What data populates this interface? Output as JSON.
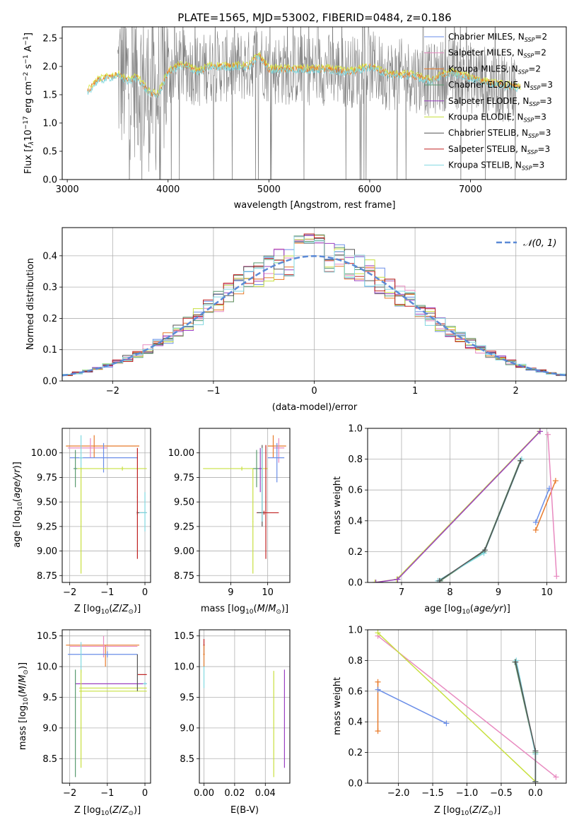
{
  "figure": {
    "title": "PLATE=1565, MJD=53002, FIBERID=0484, z=0.186"
  },
  "legend_entries": [
    {
      "base": "Chabrier MILES, N",
      "sub": "SSP",
      "tail": "=2",
      "color": "#6a8ee8"
    },
    {
      "base": "Salpeter MILES, N",
      "sub": "SSP",
      "tail": "=2",
      "color": "#e88ac0"
    },
    {
      "base": "Kroupa MILES, N",
      "sub": "SSP",
      "tail": "=2",
      "color": "#e87a2a"
    },
    {
      "base": "Chabrier ELODIE, N",
      "sub": "SSP",
      "tail": "=3",
      "color": "#5a9a70"
    },
    {
      "base": "Salpeter ELODIE, N",
      "sub": "SSP",
      "tail": "=3",
      "color": "#9a40c0"
    },
    {
      "base": "Kroupa ELODIE, N",
      "sub": "SSP",
      "tail": "=3",
      "color": "#c8e040"
    },
    {
      "base": "Chabrier STELIB, N",
      "sub": "SSP",
      "tail": "=3",
      "color": "#555555"
    },
    {
      "base": "Salpeter STELIB, N",
      "sub": "SSP",
      "tail": "=3",
      "color": "#c02020"
    },
    {
      "base": "Kroupa STELIB, N",
      "sub": "SSP",
      "tail": "=3",
      "color": "#80d8e0"
    }
  ],
  "colors": {
    "data_gray": "#808080",
    "model_cyan": "#80d8e0",
    "model_yellow": "#d8e840",
    "model_orange": "#e87a2a",
    "gaussian": "#5b8ad6",
    "grid": "#b0b0b0"
  },
  "chart_data": [
    {
      "id": "spectrum",
      "type": "line",
      "title": "PLATE=1565, MJD=53002, FIBERID=0484, z=0.186",
      "xlabel": "wavelength [Angstrom, rest frame]",
      "ylabel": "Flux [f_λ 10^-17 erg cm^-2 s^-1 A^-1]",
      "ylabel_parts": {
        "a": "Flux [",
        "b": "f",
        "b_sub": "λ",
        "c": "10",
        "c_sup": "−17",
        "d": " erg cm",
        "d_sup": "−2",
        "e": " s",
        "e_sup": "−1",
        "f": " A",
        "f_sup": "−1",
        "g": "]"
      },
      "xlim": [
        2950,
        7950
      ],
      "ylim": [
        0,
        2.7
      ],
      "xticks": [
        3000,
        4000,
        5000,
        6000,
        7000
      ],
      "yticks": [
        0.0,
        0.5,
        1.0,
        1.5,
        2.0,
        2.5
      ],
      "grid": false,
      "legend_position": "upper-right",
      "continuum_x": [
        3200,
        3300,
        3400,
        3500,
        3600,
        3700,
        3800,
        3900,
        4000,
        4100,
        4200,
        4300,
        4400,
        4600,
        4800,
        4900,
        5000,
        5200,
        5400,
        5600,
        5800,
        6000,
        6200,
        6400,
        6600,
        6800,
        7000,
        7200,
        7400,
        7500
      ],
      "continuum_y": [
        1.55,
        1.75,
        1.8,
        1.85,
        1.75,
        1.8,
        1.55,
        1.5,
        1.9,
        2.0,
        2.0,
        1.9,
        2.0,
        2.0,
        2.0,
        2.2,
        1.95,
        1.95,
        1.95,
        1.95,
        1.9,
        2.0,
        1.85,
        1.85,
        1.75,
        1.9,
        1.8,
        1.7,
        1.65,
        1.6
      ]
    },
    {
      "id": "residual-histogram",
      "type": "line",
      "xlabel": "(data-model)/error",
      "ylabel": "Normed distribution",
      "xlim": [
        -2.5,
        2.5
      ],
      "ylim": [
        0,
        0.49
      ],
      "xticks": [
        -2,
        -1,
        0,
        1,
        2
      ],
      "yticks": [
        0.0,
        0.1,
        0.2,
        0.3,
        0.4
      ],
      "grid": true,
      "legend": "𝒩(0, 1)",
      "legend_position": "upper-right",
      "bin_width": 0.1,
      "bin_start": -2.5,
      "gaussian": {
        "mu": 0,
        "sigma": 1
      }
    },
    {
      "id": "age-vs-metallicity",
      "type": "scatter",
      "xlabel": "Z [log10(Z/Z⊙)]",
      "ylabel": "age [log10(age/yr)]",
      "xlim": [
        -2.2,
        0.15
      ],
      "ylim": [
        8.68,
        10.25
      ],
      "xticks": [
        -2,
        -1,
        0
      ],
      "yticks": [
        8.75,
        9.0,
        9.25,
        9.5,
        9.75,
        10.0
      ],
      "grid": true
    },
    {
      "id": "age-vs-mass",
      "type": "scatter",
      "xlabel": "mass [log10(M/M⊙)]",
      "xlim": [
        8.15,
        10.6
      ],
      "ylim": [
        8.68,
        10.25
      ],
      "xticks": [
        9,
        10
      ],
      "yticks": [
        8.75,
        9.0,
        9.25,
        9.5,
        9.75,
        10.0
      ],
      "grid": true
    },
    {
      "id": "mass-weight-vs-age",
      "type": "line",
      "xlabel": "age [log10(age/yr)]",
      "ylabel": "mass weight",
      "xlim": [
        6.3,
        10.4
      ],
      "ylim": [
        0,
        1.0
      ],
      "xticks": [
        7,
        8,
        9,
        10
      ],
      "yticks": [
        0.0,
        0.2,
        0.4,
        0.6,
        0.8,
        1.0
      ],
      "grid": true,
      "series": [
        {
          "color": "#e87a2a",
          "x": [
            9.77,
            10.18
          ],
          "y": [
            0.34,
            0.66
          ]
        },
        {
          "color": "#6a8ee8",
          "x": [
            9.77,
            10.05
          ],
          "y": [
            0.39,
            0.61
          ]
        },
        {
          "color": "#e88ac0",
          "x": [
            10.2,
            10.02
          ],
          "y": [
            0.04,
            0.96
          ]
        },
        {
          "color": "#5a9a70",
          "x": [
            7.8,
            8.7,
            9.45
          ],
          "y": [
            0.01,
            0.2,
            0.79
          ]
        },
        {
          "color": "#80d8e0",
          "x": [
            7.75,
            8.7,
            9.48
          ],
          "y": [
            0.01,
            0.19,
            0.8
          ]
        },
        {
          "color": "#555555",
          "x": [
            7.78,
            8.72,
            9.46
          ],
          "y": [
            0.01,
            0.21,
            0.79
          ]
        },
        {
          "color": "#c8e040",
          "x": [
            6.45,
            6.9,
            9.85
          ],
          "y": [
            0.0,
            0.02,
            0.98
          ]
        },
        {
          "color": "#9a40c0",
          "x": [
            6.47,
            6.92,
            9.86
          ],
          "y": [
            0.0,
            0.02,
            0.98
          ]
        }
      ]
    },
    {
      "id": "mass-vs-metallicity",
      "type": "scatter",
      "xlabel": "Z [log10(Z/Z⊙)]",
      "ylabel": "mass [log10(M/M⊙)]",
      "xlim": [
        -2.2,
        0.15
      ],
      "ylim": [
        8.1,
        10.6
      ],
      "xticks": [
        -2,
        -1,
        0
      ],
      "yticks": [
        8.5,
        9.0,
        9.5,
        10.0,
        10.5
      ],
      "grid": true
    },
    {
      "id": "mass-vs-ebv",
      "type": "scatter",
      "xlabel": "E(B-V)",
      "xlim": [
        -0.003,
        0.056
      ],
      "ylim": [
        8.1,
        10.6
      ],
      "xticks": [
        0.0,
        0.02,
        0.04
      ],
      "yticks": [
        8.5,
        9.0,
        9.5,
        10.0,
        10.5
      ],
      "grid": true
    },
    {
      "id": "mass-weight-vs-metallicity",
      "type": "line",
      "xlabel": "Z [log10(Z/Z⊙)]",
      "ylabel": "mass weight",
      "xlim": [
        -2.45,
        0.45
      ],
      "ylim": [
        0,
        1.0
      ],
      "xticks": [
        -2.0,
        -1.5,
        -1.0,
        -0.5,
        0.0
      ],
      "yticks": [
        0.0,
        0.2,
        0.4,
        0.6,
        0.8,
        1.0
      ],
      "grid": true,
      "series": [
        {
          "color": "#e87a2a",
          "x": [
            -2.3,
            -2.3
          ],
          "y": [
            0.34,
            0.66
          ]
        },
        {
          "color": "#6a8ee8",
          "x": [
            -2.3,
            -1.3
          ],
          "y": [
            0.61,
            0.39
          ]
        },
        {
          "color": "#e88ac0",
          "x": [
            -2.3,
            0.3
          ],
          "y": [
            0.96,
            0.04
          ]
        },
        {
          "color": "#c8e040",
          "x": [
            -2.3,
            0.0
          ],
          "y": [
            0.98,
            0.01
          ]
        },
        {
          "color": "#5a9a70",
          "x": [
            -0.3,
            0.0,
            0.0
          ],
          "y": [
            0.79,
            0.2,
            0.01
          ]
        },
        {
          "color": "#80d8e0",
          "x": [
            -0.28,
            0.0,
            0.0
          ],
          "y": [
            0.8,
            0.19,
            0.01
          ]
        },
        {
          "color": "#555555",
          "x": [
            -0.29,
            0.0,
            0.0
          ],
          "y": [
            0.79,
            0.21,
            0.01
          ]
        }
      ]
    }
  ],
  "errorbars": {
    "age_vs_z": [
      {
        "x": -1.35,
        "y": 10.07,
        "x0": -2.1,
        "x1": -0.15,
        "y0": 9.95,
        "y1": 10.18,
        "color": "#e87a2a"
      },
      {
        "x": -1.45,
        "y": 10.05,
        "x0": -2.05,
        "x1": -1.0,
        "y0": 9.95,
        "y1": 10.15,
        "color": "#e88ac0"
      },
      {
        "x": -1.1,
        "y": 9.95,
        "x0": -2.0,
        "x1": -0.2,
        "y0": 9.8,
        "y1": 10.1,
        "color": "#6a8ee8"
      },
      {
        "x": -1.7,
        "y": 9.95,
        "x0": -1.75,
        "x1": -1.65,
        "y0": 9.8,
        "y1": 10.18,
        "color": "#80d8e0"
      },
      {
        "x": -0.6,
        "y": 9.84,
        "x0": -1.8,
        "x1": 0.05,
        "y0": 9.82,
        "y1": 9.86,
        "color": "#c8e040"
      },
      {
        "x": -1.85,
        "y": 9.84,
        "x0": -1.9,
        "x1": -1.8,
        "y0": 9.65,
        "y1": 10.03,
        "color": "#5a9a70"
      },
      {
        "x": -0.2,
        "y": 9.39,
        "x0": -0.22,
        "x1": 0.05,
        "y0": 9.37,
        "y1": 9.41,
        "color": "#555555"
      },
      {
        "x": -0.2,
        "y": 9.55,
        "x0": -0.21,
        "x1": -0.19,
        "y0": 8.92,
        "y1": 10.05,
        "color": "#c02020"
      },
      {
        "x": -1.7,
        "y": 9.3,
        "x0": -1.71,
        "x1": -1.69,
        "y0": 8.77,
        "y1": 9.85,
        "color": "#c8e040"
      },
      {
        "x": 0.0,
        "y": 9.39,
        "x0": -0.15,
        "x1": 0.05,
        "y0": 9.2,
        "y1": 9.6,
        "color": "#80d8e0"
      }
    ],
    "age_vs_mass": [
      {
        "x": 10.15,
        "y": 10.07,
        "x0": 10.0,
        "x1": 10.5,
        "y0": 9.95,
        "y1": 10.18,
        "color": "#e87a2a"
      },
      {
        "x": 10.3,
        "y": 10.05,
        "x0": 10.15,
        "x1": 10.45,
        "y0": 9.9,
        "y1": 10.15,
        "color": "#e88ac0"
      },
      {
        "x": 10.25,
        "y": 9.95,
        "x0": 10.0,
        "x1": 10.45,
        "y0": 9.7,
        "y1": 10.1,
        "color": "#6a8ee8"
      },
      {
        "x": 9.3,
        "y": 9.84,
        "x0": 8.25,
        "x1": 10.0,
        "y0": 9.82,
        "y1": 9.86,
        "color": "#c8e040"
      },
      {
        "x": 9.7,
        "y": 9.84,
        "x0": 9.6,
        "x1": 9.8,
        "y0": 9.65,
        "y1": 10.03,
        "color": "#5a9a70"
      },
      {
        "x": 9.8,
        "y": 9.84,
        "x0": 9.75,
        "x1": 9.85,
        "y0": 9.6,
        "y1": 10.05,
        "color": "#9a40c0"
      },
      {
        "x": 9.9,
        "y": 9.39,
        "x0": 9.7,
        "x1": 10.3,
        "y0": 9.37,
        "y1": 9.41,
        "color": "#c02020"
      },
      {
        "x": 9.85,
        "y": 9.39,
        "x0": 9.72,
        "x1": 9.9,
        "y0": 9.25,
        "y1": 10.08,
        "color": "#555555"
      },
      {
        "x": 9.95,
        "y": 9.55,
        "x0": 9.94,
        "x1": 9.96,
        "y0": 8.92,
        "y1": 10.08,
        "color": "#c02020"
      },
      {
        "x": 9.6,
        "y": 9.3,
        "x0": 9.59,
        "x1": 9.61,
        "y0": 8.77,
        "y1": 9.84,
        "color": "#c8e040"
      },
      {
        "x": 9.85,
        "y": 9.7,
        "x0": 9.84,
        "x1": 9.86,
        "y0": 9.3,
        "y1": 10.05,
        "color": "#80d8e0"
      }
    ],
    "mass_vs_z": [
      {
        "x": -1.05,
        "y": 10.35,
        "x0": -2.1,
        "x1": -0.15,
        "y0": 10.0,
        "y1": 10.35,
        "color": "#e87a2a"
      },
      {
        "x": -1.1,
        "y": 10.33,
        "x0": -2.0,
        "x1": -0.2,
        "y0": 10.15,
        "y1": 10.5,
        "color": "#e88ac0"
      },
      {
        "x": -1.0,
        "y": 10.2,
        "x0": -2.05,
        "x1": -0.2,
        "y0": 10.15,
        "y1": 10.25,
        "color": "#6a8ee8"
      },
      {
        "x": -1.7,
        "y": 10.2,
        "x0": -1.71,
        "x1": -1.69,
        "y0": 9.9,
        "y1": 10.4,
        "color": "#80d8e0"
      },
      {
        "x": -0.1,
        "y": 9.87,
        "x0": -0.2,
        "x1": 0.05,
        "y0": 9.87,
        "y1": 9.87,
        "color": "#c02020"
      },
      {
        "x": -0.9,
        "y": 9.72,
        "x0": -1.85,
        "x1": 0.05,
        "y0": 9.72,
        "y1": 9.72,
        "color": "#9a40c0"
      },
      {
        "x": -0.9,
        "y": 9.65,
        "x0": -1.75,
        "x1": 0.05,
        "y0": 9.65,
        "y1": 9.65,
        "color": "#c8e040"
      },
      {
        "x": -0.9,
        "y": 9.6,
        "x0": -1.75,
        "x1": 0.05,
        "y0": 9.6,
        "y1": 9.6,
        "color": "#c8e040"
      },
      {
        "x": -1.85,
        "y": 9.1,
        "x0": -1.86,
        "x1": -1.84,
        "y0": 8.2,
        "y1": 9.95,
        "color": "#5a9a70"
      },
      {
        "x": -1.7,
        "y": 9.0,
        "x0": -1.71,
        "x1": -1.69,
        "y0": 8.35,
        "y1": 9.95,
        "color": "#c8e040"
      },
      {
        "x": -0.2,
        "y": 9.7,
        "x0": -0.21,
        "x1": -0.19,
        "y0": 9.6,
        "y1": 10.2,
        "color": "#555555"
      },
      {
        "x": 0.0,
        "y": 9.72,
        "x0": -0.05,
        "x1": 0.05,
        "y0": 9.7,
        "y1": 9.75,
        "color": "#80d8e0"
      }
    ],
    "mass_vs_ebv": [
      {
        "x": 0.0,
        "y": 10.35,
        "x0": -0.0005,
        "x1": 0.0005,
        "y0": 10.2,
        "y1": 10.45,
        "color": "#c02020"
      },
      {
        "x": 0.0,
        "y": 10.0,
        "x0": -0.0005,
        "x1": 0.0005,
        "y0": 9.65,
        "y1": 10.35,
        "color": "#80d8e0"
      },
      {
        "x": 0.0,
        "y": 10.2,
        "x0": -0.0005,
        "x1": 0.0005,
        "y0": 10.0,
        "y1": 10.35,
        "color": "#e87a2a"
      },
      {
        "x": 0.0455,
        "y": 9.05,
        "x0": 0.0455,
        "x1": 0.0455,
        "y0": 8.2,
        "y1": 9.93,
        "color": "#c8e040"
      },
      {
        "x": 0.0525,
        "y": 9.1,
        "x0": 0.0525,
        "x1": 0.0525,
        "y0": 8.35,
        "y1": 9.95,
        "color": "#9a40c0"
      }
    ]
  }
}
